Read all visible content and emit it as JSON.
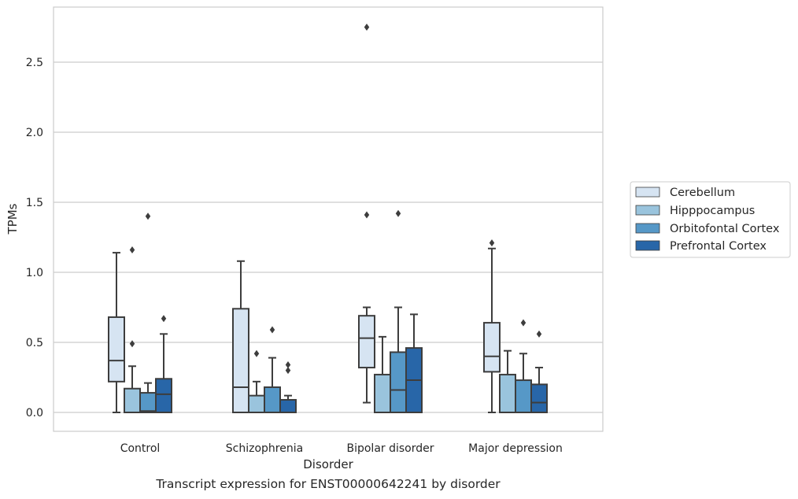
{
  "caption": "Transcript expression for ENST00000642241 by disorder",
  "chart_data": {
    "type": "box",
    "xlabel": "Disorder",
    "ylabel": "TPMs",
    "ylim": [
      -0.13,
      2.9
    ],
    "yticks": [
      0.0,
      0.5,
      1.0,
      1.5,
      2.0,
      2.5
    ],
    "ytick_labels": [
      "0.0",
      "0.5",
      "1.0",
      "1.5",
      "2.0",
      "2.5"
    ],
    "grid": true,
    "legend_position": "right-outside",
    "categories": [
      "Control",
      "Schizophrenia",
      "Bipolar disorder",
      "Major depression"
    ],
    "series": [
      {
        "name": "Cerebellum",
        "color": "#d6e4f2",
        "boxes": [
          {
            "whislo": 0.0,
            "q1": 0.22,
            "med": 0.37,
            "q3": 0.68,
            "whishi": 1.14,
            "fliers": []
          },
          {
            "whislo": 0.0,
            "q1": 0.0,
            "med": 0.18,
            "q3": 0.74,
            "whishi": 1.08,
            "fliers": []
          },
          {
            "whislo": 0.07,
            "q1": 0.32,
            "med": 0.53,
            "q3": 0.69,
            "whishi": 0.75,
            "fliers": [
              1.41,
              2.75
            ]
          },
          {
            "whislo": 0.0,
            "q1": 0.29,
            "med": 0.4,
            "q3": 0.64,
            "whishi": 1.17,
            "fliers": [
              1.21
            ]
          }
        ]
      },
      {
        "name": "Hipppocampus",
        "color": "#9ac4dd",
        "boxes": [
          {
            "whislo": 0.0,
            "q1": 0.0,
            "med": 0.0,
            "q3": 0.17,
            "whishi": 0.33,
            "fliers": [
              0.49,
              1.16
            ]
          },
          {
            "whislo": 0.0,
            "q1": 0.0,
            "med": 0.0,
            "q3": 0.12,
            "whishi": 0.22,
            "fliers": [
              0.42
            ]
          },
          {
            "whislo": 0.0,
            "q1": 0.0,
            "med": 0.0,
            "q3": 0.27,
            "whishi": 0.54,
            "fliers": []
          },
          {
            "whislo": 0.0,
            "q1": 0.0,
            "med": 0.0,
            "q3": 0.27,
            "whishi": 0.44,
            "fliers": []
          }
        ]
      },
      {
        "name": "Orbitofontal Cortex",
        "color": "#5698c7",
        "boxes": [
          {
            "whislo": 0.0,
            "q1": 0.0,
            "med": 0.01,
            "q3": 0.14,
            "whishi": 0.21,
            "fliers": [
              1.4
            ]
          },
          {
            "whislo": 0.0,
            "q1": 0.0,
            "med": 0.0,
            "q3": 0.18,
            "whishi": 0.39,
            "fliers": [
              0.59
            ]
          },
          {
            "whislo": 0.0,
            "q1": 0.0,
            "med": 0.16,
            "q3": 0.43,
            "whishi": 0.75,
            "fliers": [
              1.42
            ]
          },
          {
            "whislo": 0.0,
            "q1": 0.0,
            "med": 0.0,
            "q3": 0.23,
            "whishi": 0.42,
            "fliers": [
              0.64
            ]
          }
        ]
      },
      {
        "name": "Prefrontal Cortex",
        "color": "#2866a8",
        "boxes": [
          {
            "whislo": 0.0,
            "q1": 0.0,
            "med": 0.13,
            "q3": 0.24,
            "whishi": 0.56,
            "fliers": [
              0.67
            ]
          },
          {
            "whislo": 0.0,
            "q1": 0.0,
            "med": 0.0,
            "q3": 0.09,
            "whishi": 0.12,
            "fliers": [
              0.3,
              0.34
            ]
          },
          {
            "whislo": 0.0,
            "q1": 0.0,
            "med": 0.23,
            "q3": 0.46,
            "whishi": 0.7,
            "fliers": []
          },
          {
            "whislo": 0.0,
            "q1": 0.0,
            "med": 0.07,
            "q3": 0.2,
            "whishi": 0.32,
            "fliers": [
              0.56
            ]
          }
        ]
      }
    ]
  }
}
